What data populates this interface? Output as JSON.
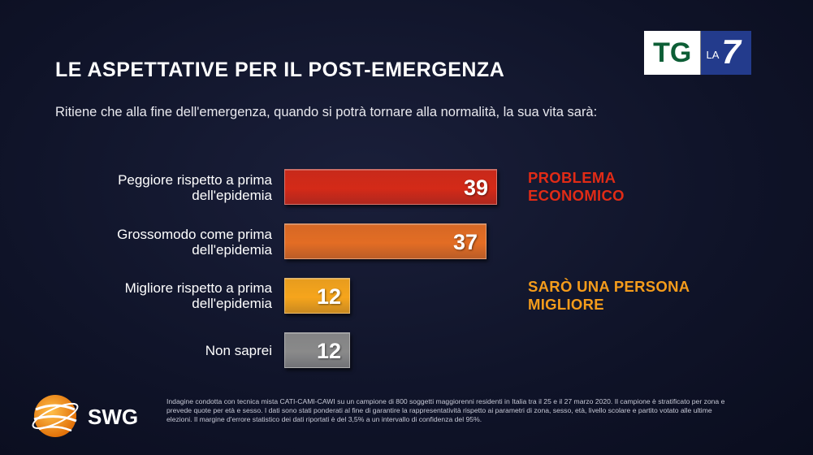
{
  "title": "LE ASPETTATIVE PER IL POST-EMERGENZA",
  "question": "Ritiene che alla fine dell'emergenza, quando si potrà tornare alla normalità, la sua vita sarà:",
  "channel_logo": {
    "tg": "TG",
    "la": "LA",
    "seven": "7"
  },
  "chart_data": {
    "type": "bar",
    "orientation": "horizontal",
    "categories": [
      "Peggiore rispetto a prima dell'epidemia",
      "Grossomodo come prima dell'epidemia",
      "Migliore rispetto a prima dell'epidemia",
      "Non saprei"
    ],
    "values": [
      39,
      37,
      12,
      12
    ],
    "colors": [
      "#d42a18",
      "#e36d24",
      "#f6a51c",
      "#8a8a8a"
    ],
    "annotations": [
      {
        "text": "PROBLEMA ECONOMICO",
        "color": "#e12b16",
        "category": "Peggiore rispetto a prima dell'epidemia"
      },
      {
        "text": "SARÒ UNA PERSONA MIGLIORE",
        "color": "#f59c1b",
        "category": "Migliore rispetto a prima dell'epidemia"
      }
    ],
    "grid": false
  },
  "labels": {
    "cat0_line1": "Peggiore rispetto a prima",
    "cat0_line2": "dell'epidemia",
    "cat1_line1": "Grossomodo come prima",
    "cat1_line2": "dell'epidemia",
    "cat2_line1": "Migliore rispetto a prima",
    "cat2_line2": "dell'epidemia",
    "cat3_line1": "Non saprei",
    "ann0_line1": "PROBLEMA",
    "ann0_line2": "ECONOMICO",
    "ann1_line1": "SARÒ UNA PERSONA",
    "ann1_line2": "MIGLIORE"
  },
  "source": {
    "brand": "SWG",
    "footnote": "Indagine condotta con tecnica mista CATI-CAMI-CAWI su un campione di 800 soggetti maggiorenni residenti in Italia tra il 25 e il 27 marzo 2020. Il campione è stratificato per zona e prevede quote per età e sesso. I dati sono stati ponderati al fine di garantire la rappresentatività rispetto ai parametri di zona, sesso, età, livello scolare e partito votato alle ultime elezioni. Il margine d'errore statistico dei dati riportati è del 3,5% a un intervallo di confidenza del 95%."
  }
}
